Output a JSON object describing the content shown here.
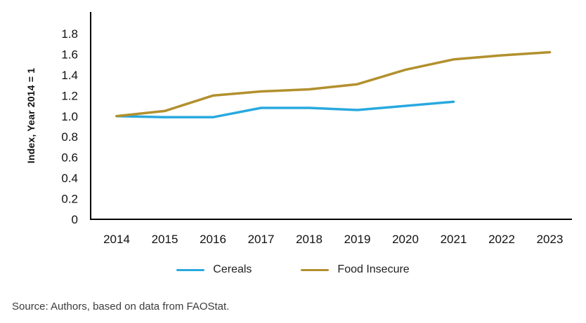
{
  "page": {
    "source_note": "Source: Authors, based on data from FAOStat."
  },
  "chart_data": {
    "type": "line",
    "title": "",
    "xlabel": "",
    "ylabel": "Index, Year 2014 = 1",
    "x": [
      2014,
      2015,
      2016,
      2017,
      2018,
      2019,
      2020,
      2021,
      2022,
      2023
    ],
    "ylim": [
      0,
      1.9
    ],
    "yticks": {
      "values": [
        0,
        0.2,
        0.4,
        0.6,
        0.8,
        1.0,
        1.2,
        1.4,
        1.6,
        1.8
      ],
      "labels": [
        "0",
        "0.2",
        "0.4",
        "0.6",
        "0.8",
        "1.0",
        "1.2",
        "1.4",
        "1.6",
        "1.8"
      ]
    },
    "grid": false,
    "legend_position": "bottom",
    "axis_color": "#000000",
    "series": [
      {
        "name": "Cereals",
        "color": "#29A9DF",
        "x": [
          2014,
          2015,
          2016,
          2017,
          2018,
          2019,
          2020,
          2021
        ],
        "values": [
          1.0,
          0.99,
          0.99,
          1.08,
          1.08,
          1.06,
          1.1,
          1.14
        ]
      },
      {
        "name": "Food Insecure",
        "color": "#B2902E",
        "x": [
          2014,
          2015,
          2016,
          2017,
          2018,
          2019,
          2020,
          2021,
          2022,
          2023
        ],
        "values": [
          1.0,
          1.05,
          1.2,
          1.24,
          1.26,
          1.31,
          1.45,
          1.55,
          1.59,
          1.62
        ]
      }
    ]
  }
}
